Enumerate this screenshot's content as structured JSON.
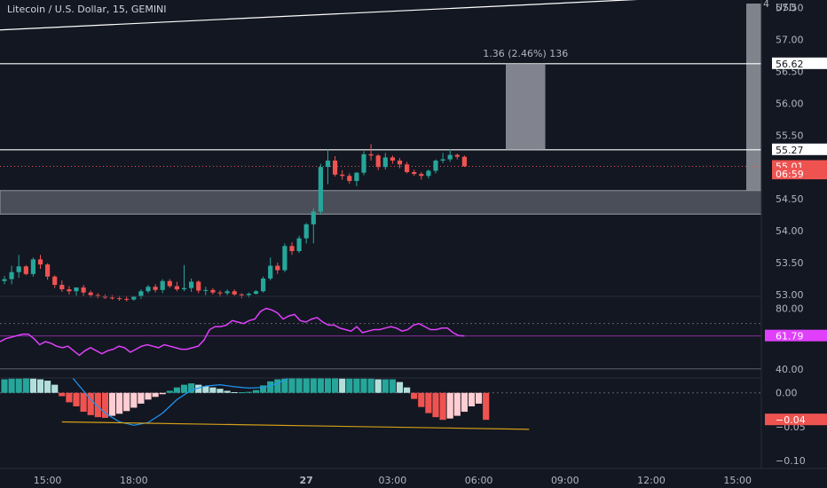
{
  "header": {
    "title": "Litecoin / U.S. Dollar, 15, GEMINI",
    "currency": "USD",
    "corner_digit": "4"
  },
  "colors": {
    "background": "#131722",
    "up": "#26a69a",
    "down": "#ef5350",
    "up_light": "#b2dfdb",
    "down_light": "#ffcdd2",
    "white_line": "#ffffff",
    "rsi": "#e040fb",
    "signal": "#2196f3",
    "zone": "#787b86",
    "trend": "#d4a017"
  },
  "chart_data": [
    {
      "type": "candlestick",
      "name": "price",
      "x_ticks": [
        "15:00",
        "18:00",
        "27",
        "03:00",
        "06:00",
        "09:00",
        "12:00",
        "15:00"
      ],
      "y_ticks": [
        "57.50",
        "57.00",
        "56.50",
        "56.00",
        "55.50",
        "55.00",
        "54.50",
        "54.00",
        "53.50",
        "53.00"
      ],
      "ylim": [
        52.97,
        57.62
      ],
      "xlim": [
        0,
        105
      ],
      "tick_index": [
        6,
        18,
        42,
        54,
        66,
        78,
        90,
        102
      ],
      "price_tags": [
        {
          "label": "56.62",
          "value": 56.62,
          "style": "white"
        },
        {
          "label": "55.27",
          "value": 55.27,
          "style": "white"
        },
        {
          "label": "55.01",
          "value": 55.01,
          "style": "red"
        },
        {
          "label": "06:59",
          "value": 54.89,
          "style": "red-sub"
        }
      ],
      "measure_label": "1.36 (2.46%) 136",
      "measure": {
        "i0": 70,
        "i1": 75,
        "from": 55.27,
        "to": 56.62
      },
      "zone": {
        "low": 54.26,
        "high": 54.63
      },
      "hlines": [
        56.62,
        55.27
      ],
      "trendline": {
        "x0": 0,
        "y0": 57.15,
        "x1": 107,
        "y1": 57.73
      },
      "current_dashed": 55.01,
      "candles": [
        [
          53.21,
          53.29,
          53.16,
          53.24
        ],
        [
          53.24,
          53.45,
          53.16,
          53.35
        ],
        [
          53.35,
          53.62,
          53.26,
          53.44
        ],
        [
          53.44,
          53.46,
          53.3,
          53.32
        ],
        [
          53.32,
          53.58,
          53.28,
          53.55
        ],
        [
          53.55,
          53.62,
          53.4,
          53.47
        ],
        [
          53.47,
          53.49,
          53.23,
          53.28
        ],
        [
          53.28,
          53.3,
          53.1,
          53.15
        ],
        [
          53.15,
          53.22,
          53.04,
          53.08
        ],
        [
          53.08,
          53.13,
          53.0,
          53.05
        ],
        [
          53.05,
          53.1,
          52.98,
          53.11
        ],
        [
          53.11,
          53.15,
          52.98,
          53.03
        ],
        [
          53.03,
          53.06,
          52.95,
          52.99
        ],
        [
          52.99,
          53.02,
          52.94,
          52.97
        ],
        [
          52.97,
          53.0,
          52.93,
          52.95
        ],
        [
          52.95,
          52.99,
          52.92,
          52.94
        ],
        [
          52.94,
          52.98,
          52.9,
          52.93
        ],
        [
          52.93,
          52.97,
          52.89,
          52.92
        ],
        [
          52.92,
          52.98,
          52.9,
          52.97
        ],
        [
          52.97,
          53.08,
          52.93,
          53.05
        ],
        [
          53.05,
          53.15,
          53.02,
          53.12
        ],
        [
          53.12,
          53.16,
          53.03,
          53.07
        ],
        [
          53.07,
          53.24,
          53.02,
          53.21
        ],
        [
          53.21,
          53.24,
          53.1,
          53.13
        ],
        [
          53.13,
          53.2,
          53.05,
          53.08
        ],
        [
          53.08,
          53.46,
          53.05,
          53.1
        ],
        [
          53.1,
          53.25,
          53.04,
          53.2
        ],
        [
          53.2,
          53.22,
          53.02,
          53.06
        ],
        [
          53.06,
          53.12,
          52.99,
          53.07
        ],
        [
          53.07,
          53.1,
          53.0,
          53.03
        ],
        [
          53.03,
          53.06,
          52.96,
          53.02
        ],
        [
          53.02,
          53.08,
          52.99,
          53.05
        ],
        [
          53.05,
          53.08,
          52.98,
          53.0
        ],
        [
          53.0,
          53.02,
          52.94,
          52.99
        ],
        [
          52.99,
          53.03,
          52.95,
          53.01
        ],
        [
          53.01,
          53.07,
          53.0,
          53.05
        ],
        [
          53.05,
          53.28,
          53.03,
          53.25
        ],
        [
          53.25,
          53.58,
          53.22,
          53.45
        ],
        [
          53.45,
          53.5,
          53.32,
          53.38
        ],
        [
          53.38,
          53.8,
          53.35,
          53.76
        ],
        [
          53.76,
          53.82,
          53.62,
          53.68
        ],
        [
          53.68,
          53.92,
          53.65,
          53.88
        ],
        [
          53.88,
          54.12,
          53.8,
          54.1
        ],
        [
          54.1,
          54.35,
          53.8,
          54.3
        ],
        [
          54.3,
          55.05,
          54.25,
          55.0
        ],
        [
          55.0,
          55.27,
          54.73,
          55.1
        ],
        [
          55.1,
          55.17,
          54.85,
          54.88
        ],
        [
          54.88,
          54.95,
          54.8,
          54.86
        ],
        [
          54.86,
          54.9,
          54.74,
          54.78
        ],
        [
          54.78,
          54.92,
          54.7,
          54.91
        ],
        [
          54.91,
          55.25,
          54.87,
          55.2
        ],
        [
          55.2,
          55.36,
          55.1,
          55.18
        ],
        [
          55.18,
          55.2,
          54.95,
          55.0
        ],
        [
          55.0,
          55.22,
          54.96,
          55.15
        ],
        [
          55.15,
          55.18,
          55.05,
          55.1
        ],
        [
          55.1,
          55.14,
          54.98,
          55.04
        ],
        [
          55.04,
          55.08,
          54.9,
          54.92
        ],
        [
          54.92,
          54.96,
          54.86,
          54.89
        ],
        [
          54.89,
          54.92,
          54.8,
          54.86
        ],
        [
          54.86,
          54.96,
          54.82,
          54.94
        ],
        [
          54.94,
          55.12,
          54.9,
          55.1
        ],
        [
          55.1,
          55.22,
          55.06,
          55.12
        ],
        [
          55.12,
          55.28,
          55.08,
          55.19
        ],
        [
          55.19,
          55.21,
          55.12,
          55.16
        ],
        [
          55.16,
          55.18,
          55.0,
          55.01
        ]
      ]
    },
    {
      "type": "line",
      "name": "rsi",
      "y_ticks": [
        "80.00",
        "40.00"
      ],
      "ylim": [
        34,
        88
      ],
      "current_label": "61.79",
      "current_value": 61.79,
      "band_line": 40,
      "band_upper": 70,
      "values": [
        58,
        60,
        61,
        62,
        63,
        63,
        60,
        56,
        58,
        57,
        55,
        54,
        55,
        52,
        49,
        52,
        54,
        52,
        50,
        52,
        53,
        55,
        54,
        51,
        53,
        55,
        56,
        55,
        54,
        56,
        55,
        54,
        53,
        53,
        54,
        55,
        59,
        66,
        68,
        68,
        69,
        72,
        71,
        70,
        72,
        73,
        78,
        80,
        79,
        77,
        73,
        75,
        76,
        72,
        71,
        73,
        74,
        71,
        69,
        69,
        67,
        66,
        65,
        68,
        64,
        65,
        66,
        66,
        67,
        68,
        67,
        65,
        66,
        69,
        70,
        68,
        66,
        66,
        67,
        67,
        64,
        62,
        61.8
      ]
    },
    {
      "type": "histogram",
      "name": "macd",
      "y_ticks": [
        "0.00",
        "-0.05",
        "-0.10"
      ],
      "ylim": [
        -0.112,
        0.022
      ],
      "current_label": "-0.04",
      "current_value": -0.04,
      "histogram": [
        0.02,
        0.021,
        0.021,
        0.022,
        0.021,
        0.02,
        0.018,
        0.012,
        -0.005,
        -0.014,
        -0.02,
        -0.028,
        -0.033,
        -0.036,
        -0.037,
        -0.034,
        -0.031,
        -0.027,
        -0.022,
        -0.016,
        -0.01,
        -0.006,
        -0.002,
        0.003,
        0.008,
        0.012,
        0.014,
        0.012,
        0.01,
        0.008,
        0.006,
        0.003,
        0.001,
        0.001,
        0.0015,
        0.004,
        0.011,
        0.017,
        0.02,
        0.021,
        0.022,
        0.022,
        0.022,
        0.022,
        0.022,
        0.022,
        0.022,
        0.021,
        0.021,
        0.021,
        0.021,
        0.021,
        0.02,
        0.02,
        0.02,
        0.016,
        0.008,
        -0.009,
        -0.021,
        -0.03,
        -0.036,
        -0.04,
        -0.038,
        -0.034,
        -0.028,
        -0.02,
        -0.016,
        -0.04
      ],
      "signal_x": [
        9.5,
        12,
        14,
        16,
        18,
        20,
        22,
        24,
        26,
        28,
        30,
        32,
        34,
        36,
        38,
        39.5
      ],
      "signal_y": [
        0.022,
        -0.01,
        -0.03,
        -0.043,
        -0.048,
        -0.044,
        -0.03,
        -0.01,
        0.004,
        0.01,
        0.012,
        0.009,
        0.007,
        0.008,
        0.014,
        0.022
      ],
      "trendline": {
        "x0": 8,
        "y0": -0.043,
        "x1": 73,
        "y1": -0.054
      }
    }
  ]
}
